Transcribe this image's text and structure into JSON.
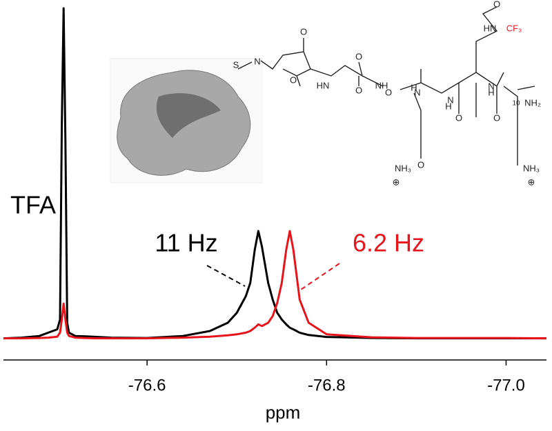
{
  "chart_data": {
    "type": "line",
    "x_label": "ppm",
    "x": [
      -76.44,
      -76.46,
      -76.48,
      -76.49,
      -76.5,
      -76.503,
      -76.505,
      -76.507,
      -76.509,
      -76.511,
      -76.513,
      -76.52,
      -76.54,
      -76.56,
      -76.6,
      -76.64,
      -76.67,
      -76.69,
      -76.7,
      -76.71,
      -76.715,
      -76.72,
      -76.724,
      -76.728,
      -76.735,
      -76.74,
      -76.745,
      -76.75,
      -76.755,
      -76.759,
      -76.763,
      -76.77,
      -76.78,
      -76.8,
      -76.85,
      -76.9,
      -76.95,
      -77.0,
      -77.045
    ],
    "series": [
      {
        "color": "#000000",
        "values": [
          0.3,
          0.5,
          1,
          2,
          3,
          6,
          65,
          100,
          60,
          5,
          2,
          1,
          0.8,
          0.5,
          0.4,
          1,
          2.5,
          5,
          8,
          13,
          17,
          27,
          32.7,
          28,
          17,
          12,
          8,
          6,
          4.5,
          3.5,
          3,
          2,
          1.3,
          0.7,
          0.4,
          0.3,
          0.3,
          0.3,
          0.3
        ]
      },
      {
        "color": "#e8141c",
        "values": [
          0.3,
          0.3,
          0.4,
          0.5,
          0.8,
          2,
          6,
          10.8,
          6,
          2,
          1,
          0.5,
          0.3,
          0.3,
          0.3,
          0.5,
          0.8,
          1.2,
          1.5,
          2,
          2.5,
          3.5,
          4.5,
          4,
          5,
          7,
          11,
          17,
          27,
          32.7,
          27,
          12,
          5,
          1.5,
          0.6,
          0.4,
          0.4,
          0.4,
          0.3
        ]
      }
    ],
    "xlim": [
      -76.44,
      -77.045
    ],
    "xticks": [
      -76.6,
      -76.8,
      {
        "value": -77,
        "label": "-77.0"
      }
    ],
    "ylim": [
      0,
      100
    ],
    "annotations": [
      {
        "text": "TFA",
        "color": "#000000"
      },
      {
        "text": "11 Hz",
        "color": "#000000"
      },
      {
        "text": "6.2 Hz",
        "color": "#e8141c"
      }
    ],
    "structure_labels": [
      "S",
      "N",
      "O",
      "O",
      "O",
      "HN",
      "O",
      "NH",
      "O",
      "H",
      "N",
      "O",
      "N",
      "H",
      "O",
      "H",
      "N",
      "O",
      "HN",
      "O",
      "CF₃",
      "10",
      "NH₂",
      "NH₃",
      "NH₃",
      "⊕",
      "⊕"
    ]
  }
}
